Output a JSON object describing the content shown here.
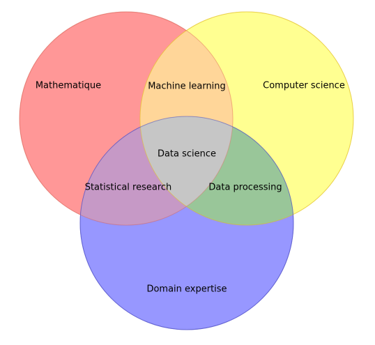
{
  "colors": {
    "set_a": "#ff6f6f",
    "set_b": "#ffff66",
    "set_c": "#6f6fff",
    "ab": "#ffd699",
    "ac": "#c699c6",
    "bc": "#99c699",
    "abc": "#c6c6c6"
  },
  "labels": {
    "set_a": "Mathematique",
    "set_b": "Computer science",
    "set_c": "Domain expertise",
    "ab": "Machine learning",
    "ac": "Statistical research",
    "bc": "Data processing",
    "abc": "Data science"
  }
}
